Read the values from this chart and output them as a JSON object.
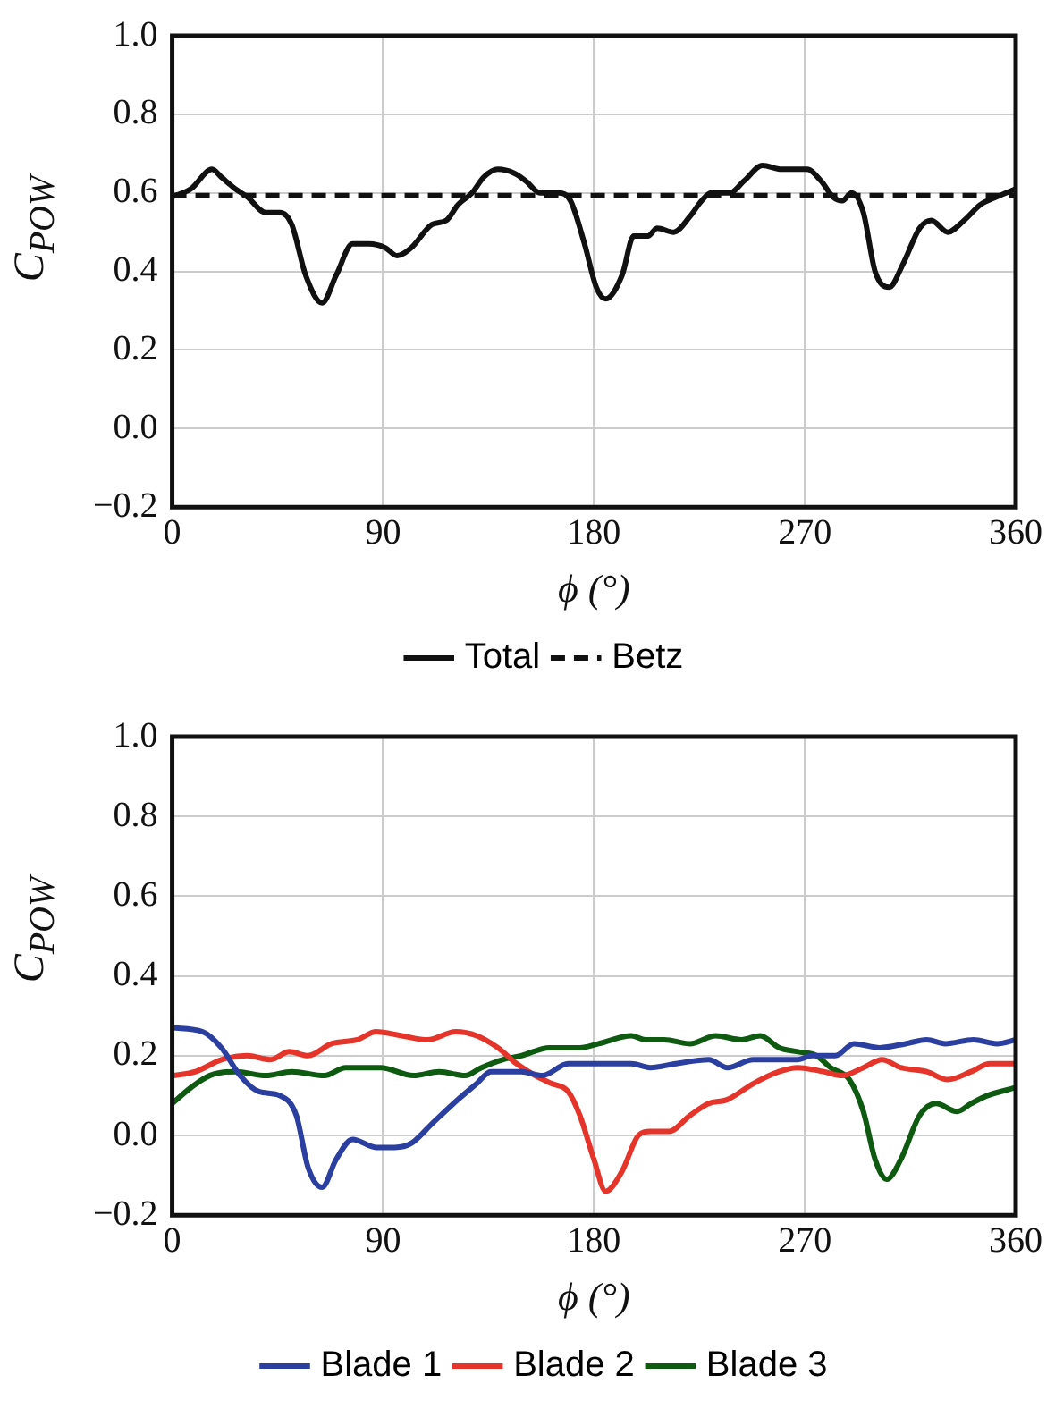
{
  "chart_data": [
    {
      "type": "line",
      "xlabel": "ϕ (°)",
      "ylabel": "C$_{POW}$",
      "xlim": [
        0,
        360
      ],
      "xticks": [
        0,
        90,
        180,
        270,
        360
      ],
      "ylim": [
        -0.2,
        1.0
      ],
      "yticks": [
        {
          "value": -0.2,
          "label": "−0.2"
        },
        {
          "value": 0,
          "label": "0.0"
        },
        0.2,
        0.4,
        0.6,
        0.8,
        {
          "value": 1.0,
          "label": "1.0"
        }
      ],
      "grid": true,
      "legend": "bottom",
      "series": [
        {
          "name": "Total",
          "color": "#111111",
          "line_style": "solid",
          "x": [
            0,
            8,
            17,
            21,
            27,
            32,
            40,
            46,
            51,
            57,
            64,
            70,
            77,
            84,
            91,
            96,
            102,
            111,
            117,
            122,
            128,
            133,
            139,
            146,
            151,
            157,
            165,
            170,
            176,
            181,
            185,
            192,
            197,
            203,
            207,
            214,
            221,
            226,
            230,
            234,
            238,
            244,
            252,
            260,
            267,
            271,
            277,
            282,
            286,
            290,
            295,
            300,
            306,
            312,
            319,
            324,
            331,
            338,
            345,
            352,
            360
          ],
          "values": [
            0.59,
            0.61,
            0.66,
            0.64,
            0.61,
            0.59,
            0.55,
            0.55,
            0.52,
            0.39,
            0.32,
            0.39,
            0.47,
            0.47,
            0.46,
            0.44,
            0.46,
            0.52,
            0.53,
            0.57,
            0.6,
            0.64,
            0.66,
            0.65,
            0.63,
            0.6,
            0.6,
            0.58,
            0.47,
            0.36,
            0.33,
            0.39,
            0.49,
            0.49,
            0.51,
            0.5,
            0.54,
            0.58,
            0.6,
            0.6,
            0.6,
            0.63,
            0.67,
            0.66,
            0.66,
            0.66,
            0.63,
            0.59,
            0.58,
            0.6,
            0.55,
            0.4,
            0.36,
            0.42,
            0.51,
            0.53,
            0.5,
            0.53,
            0.57,
            0.59,
            0.61
          ]
        },
        {
          "name": "Betz",
          "color": "#111111",
          "line_style": "dashed",
          "x": [
            0,
            360
          ],
          "values": [
            0.593,
            0.593
          ]
        }
      ]
    },
    {
      "type": "line",
      "xlabel": "ϕ (°)",
      "ylabel": "C$_{POW}$",
      "xlim": [
        0,
        360
      ],
      "xticks": [
        0,
        90,
        180,
        270,
        360
      ],
      "ylim": [
        -0.2,
        1.0
      ],
      "yticks": [
        {
          "value": -0.2,
          "label": "−0.2"
        },
        {
          "value": 0,
          "label": "0.0"
        },
        0.2,
        0.4,
        0.6,
        0.8,
        {
          "value": 1.0,
          "label": "1.0"
        }
      ],
      "grid": true,
      "legend": "bottom",
      "series": [
        {
          "name": "Blade 1",
          "color": "#2b3fa0",
          "line_style": "solid",
          "x": [
            0,
            13,
            21,
            29,
            37,
            46,
            53,
            58,
            64,
            70,
            77,
            87,
            95,
            102,
            111,
            122,
            130,
            136,
            149,
            158,
            169,
            180,
            188,
            196,
            204,
            215,
            229,
            237,
            248,
            259,
            267,
            273,
            283,
            291,
            302,
            313,
            322,
            330,
            342,
            352,
            360
          ],
          "values": [
            0.27,
            0.26,
            0.22,
            0.15,
            0.11,
            0.1,
            0.05,
            -0.08,
            -0.13,
            -0.06,
            -0.01,
            -0.03,
            -0.03,
            -0.02,
            0.03,
            0.09,
            0.13,
            0.16,
            0.16,
            0.15,
            0.18,
            0.18,
            0.18,
            0.18,
            0.17,
            0.18,
            0.19,
            0.17,
            0.19,
            0.19,
            0.19,
            0.2,
            0.2,
            0.23,
            0.22,
            0.23,
            0.24,
            0.23,
            0.24,
            0.23,
            0.24
          ]
        },
        {
          "name": "Blade 2",
          "color": "#e5352a",
          "line_style": "solid",
          "x": [
            0,
            10,
            21,
            32,
            42,
            50,
            58,
            68,
            79,
            87,
            98,
            109,
            121,
            130,
            139,
            147,
            155,
            162,
            169,
            174,
            180,
            185,
            192,
            199,
            204,
            212,
            221,
            229,
            237,
            248,
            259,
            267,
            278,
            286,
            295,
            303,
            311,
            322,
            331,
            341,
            349,
            360
          ],
          "values": [
            0.15,
            0.16,
            0.19,
            0.2,
            0.19,
            0.21,
            0.2,
            0.23,
            0.24,
            0.26,
            0.25,
            0.24,
            0.26,
            0.25,
            0.22,
            0.18,
            0.15,
            0.13,
            0.11,
            0.05,
            -0.06,
            -0.14,
            -0.09,
            0.0,
            0.01,
            0.01,
            0.05,
            0.08,
            0.09,
            0.13,
            0.16,
            0.17,
            0.16,
            0.15,
            0.17,
            0.19,
            0.17,
            0.16,
            0.14,
            0.16,
            0.18,
            0.18
          ]
        },
        {
          "name": "Blade 3",
          "color": "#0d5a10",
          "line_style": "solid",
          "x": [
            0,
            8,
            16,
            27,
            40,
            51,
            65,
            74,
            89,
            103,
            114,
            125,
            132,
            141,
            149,
            161,
            174,
            182,
            196,
            202,
            210,
            221,
            232,
            243,
            251,
            259,
            267,
            275,
            281,
            289,
            295,
            300,
            305,
            311,
            319,
            326,
            335,
            341,
            348,
            360
          ],
          "values": [
            0.08,
            0.12,
            0.15,
            0.16,
            0.15,
            0.16,
            0.15,
            0.17,
            0.17,
            0.15,
            0.16,
            0.15,
            0.17,
            0.19,
            0.2,
            0.22,
            0.22,
            0.23,
            0.25,
            0.24,
            0.24,
            0.23,
            0.25,
            0.24,
            0.25,
            0.22,
            0.21,
            0.2,
            0.17,
            0.14,
            0.06,
            -0.06,
            -0.11,
            -0.06,
            0.05,
            0.08,
            0.06,
            0.08,
            0.1,
            0.12
          ]
        }
      ]
    }
  ]
}
